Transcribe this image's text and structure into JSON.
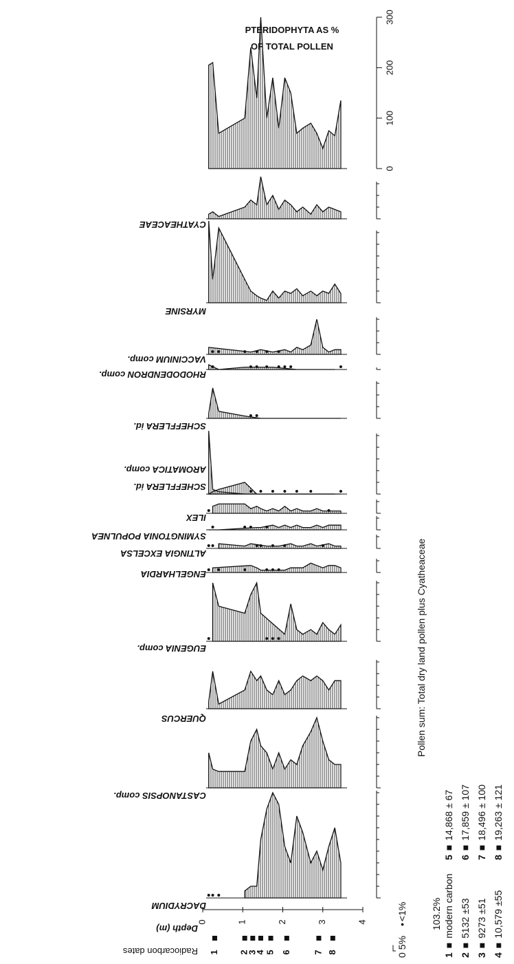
{
  "chart_data": {
    "type": "pollen",
    "title": [
      "PTERIDOPHYTA AS %",
      "OF TOTAL POLLEN"
    ],
    "x_label": "Depth (m)",
    "xlim": [
      0,
      4
    ],
    "xticks": [
      0,
      1,
      2,
      3,
      4
    ],
    "x": [
      0.15,
      0.25,
      0.4,
      1.05,
      1.2,
      1.35,
      1.45,
      1.6,
      1.75,
      1.9,
      2.05,
      2.2,
      2.35,
      2.5,
      2.7,
      2.85,
      3.0,
      3.15,
      3.3,
      3.45
    ],
    "color": "#111111",
    "pteridophyta": {
      "values": [
        205,
        210,
        70,
        100,
        240,
        140,
        300,
        100,
        180,
        80,
        180,
        150,
        70,
        80,
        90,
        70,
        40,
        75,
        65,
        135
      ],
      "ylim": [
        0,
        300
      ],
      "yticks": [
        0,
        100,
        200,
        300
      ]
    },
    "series": [
      {
        "name": "DACRYDIUM",
        "values": [
          0.5,
          0.5,
          0.5,
          3,
          5,
          5,
          25,
          38,
          45,
          40,
          22,
          15,
          35,
          28,
          15,
          20,
          12,
          22,
          30,
          15
        ],
        "ticks": [
          0,
          5,
          10,
          15,
          20,
          25,
          30,
          35,
          40,
          45
        ]
      },
      {
        "name": "CASTANOPSIS comp.",
        "values": [
          15,
          8,
          7,
          7,
          20,
          25,
          18,
          15,
          8,
          15,
          8,
          12,
          10,
          18,
          24,
          30,
          20,
          12,
          10,
          10
        ],
        "ticks": [
          0,
          5,
          10,
          15,
          20,
          25,
          30
        ]
      },
      {
        "name": "QUERCUS",
        "values": [
          3,
          16,
          2,
          8,
          16,
          12,
          14,
          8,
          6,
          12,
          6,
          8,
          12,
          14,
          12,
          14,
          12,
          8,
          12,
          12
        ],
        "ticks": [
          0,
          5,
          10,
          15,
          20
        ]
      },
      {
        "name": "EUGENIA comp.",
        "values": [
          0.5,
          25,
          15,
          12,
          20,
          25,
          12,
          0.5,
          0.5,
          0.5,
          3,
          16,
          5,
          3,
          5,
          3,
          8,
          5,
          3,
          7
        ],
        "ticks": [
          0,
          5,
          10,
          15,
          20,
          25
        ]
      },
      {
        "name": "ENGELHARDIA",
        "values": [
          0.5,
          2,
          0.5,
          0.5,
          3,
          2,
          1,
          0.5,
          0.5,
          0.5,
          1,
          2,
          2,
          2,
          4,
          3,
          2,
          3,
          3,
          2
        ],
        "ticks": [
          0,
          5
        ]
      },
      {
        "name": "ALTINGIA EXCELSA",
        "values": [
          0.5,
          0.5,
          2,
          1,
          2,
          0.5,
          0.5,
          1,
          0.5,
          1,
          0.5,
          2,
          1,
          1,
          2,
          1,
          0.5,
          2,
          1,
          1
        ],
        "ticks": [
          0,
          5
        ]
      },
      {
        "name": "SYMINGTONIA POPULNEA",
        "values": [
          0,
          0.5,
          0,
          0.5,
          0.5,
          1,
          1,
          0.5,
          2,
          1,
          2,
          1,
          2,
          1,
          1,
          2,
          1,
          2,
          2,
          2
        ],
        "ticks": [
          0,
          5
        ]
      },
      {
        "name": "ILEX",
        "values": [
          0.5,
          3,
          4,
          4,
          2,
          3,
          2,
          1,
          2,
          1,
          3,
          1,
          2,
          1,
          1,
          2,
          1,
          0.5,
          1,
          1
        ],
        "ticks": [
          0,
          5
        ]
      },
      {
        "name": "SCHEFFLERA id.",
        "values": [
          0,
          1,
          2,
          5,
          0.5,
          0,
          0.5,
          0,
          0.5,
          0,
          0.5,
          0,
          0.5,
          0,
          0.5,
          0,
          0,
          0,
          0,
          0.5
        ]
      },
      {
        "name": "AROMATICA comp.",
        "values": [
          27,
          2,
          1,
          0,
          0,
          0,
          0,
          0,
          0,
          0,
          0,
          0,
          0,
          0,
          0,
          0,
          0,
          0,
          0,
          0
        ],
        "ticks": [
          0,
          5,
          10,
          15,
          20,
          25
        ]
      },
      {
        "name": "SCHEFFLERA id.",
        "values": [
          2,
          13,
          3,
          1,
          0.5,
          0.5,
          0,
          0,
          0,
          0,
          0,
          0,
          0,
          0,
          0,
          0,
          0,
          0,
          0,
          0
        ],
        "ticks": [
          0,
          5,
          10,
          15
        ]
      },
      {
        "name": "RHODODENDRON comp.",
        "values": [
          2,
          0.5,
          0,
          1,
          0.5,
          0.5,
          1,
          0.5,
          1,
          0.5,
          0.5,
          0.5,
          0,
          0,
          0,
          0,
          0,
          0,
          0,
          0.5
        ],
        "ticks": [
          0
        ]
      },
      {
        "name": "VACCINIUM comp.",
        "values": [
          3,
          0.5,
          0.5,
          0.5,
          1,
          0.5,
          2,
          0.5,
          1,
          0.5,
          2,
          1,
          3,
          2,
          4,
          15,
          3,
          1,
          2,
          2
        ],
        "ticks": [
          0,
          5,
          10,
          15
        ]
      },
      {
        "name": "MYRSINE",
        "values": [
          35,
          10,
          32,
          10,
          5,
          3,
          2,
          1,
          5,
          2,
          5,
          4,
          6,
          3,
          5,
          3,
          5,
          4,
          8,
          4
        ],
        "ticks": [
          0,
          5,
          10,
          15,
          20,
          25,
          30
        ]
      },
      {
        "name": "CYATHEACEAE",
        "values": [
          2,
          3,
          1,
          5,
          8,
          6,
          18,
          6,
          10,
          4,
          8,
          6,
          3,
          5,
          2,
          6,
          3,
          5,
          4,
          3
        ],
        "ticks": [
          0,
          5,
          10,
          15
        ]
      }
    ],
    "radiocarbon": {
      "label": "Radiocarbon dates",
      "note": "103.2%",
      "dates": [
        {
          "number": 1,
          "depth": 0.3,
          "age": "modern carbon"
        },
        {
          "number": 2,
          "depth": 1.05,
          "age": "5132 ±53"
        },
        {
          "number": 3,
          "depth": 1.25,
          "age": "9273 ±51"
        },
        {
          "number": 4,
          "depth": 1.45,
          "age": "10,579 ±55"
        },
        {
          "number": 5,
          "depth": 1.7,
          "age": "14,868 ± 67"
        },
        {
          "number": 6,
          "depth": 2.1,
          "age": "17,859 ± 107"
        },
        {
          "number": 7,
          "depth": 2.9,
          "age": "18,496 ± 100"
        },
        {
          "number": 8,
          "depth": 3.25,
          "age": "19,263 ± 121"
        }
      ]
    },
    "legend": {
      "scale_zero": 0,
      "scale_label": "5%",
      "trace_label": "<1%"
    },
    "pollen_sum": "Pollen sum: Total dry land pollen plus Cyatheaceae"
  }
}
